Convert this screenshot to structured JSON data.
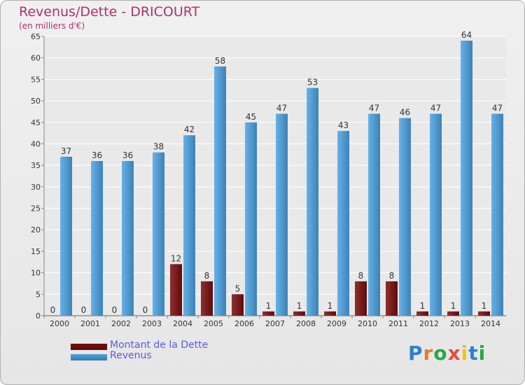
{
  "header": {
    "title": "Revenus/Dette - DRICOURT",
    "subtitle": "(en milliers d'€)"
  },
  "chart_data": {
    "type": "bar",
    "title": "Revenus/Dette - DRICOURT",
    "subtitle": "(en milliers d'€)",
    "xlabel": "",
    "ylabel": "",
    "ylim": [
      0,
      65
    ],
    "yticks": [
      0,
      5,
      10,
      15,
      20,
      25,
      30,
      35,
      40,
      45,
      50,
      55,
      60,
      65
    ],
    "grid": true,
    "categories": [
      "2000",
      "2001",
      "2002",
      "2003",
      "2004",
      "2005",
      "2006",
      "2007",
      "2008",
      "2009",
      "2010",
      "2011",
      "2012",
      "2013",
      "2014"
    ],
    "series": [
      {
        "name": "Montant de la Dette",
        "color": "#7a0c0c",
        "values": [
          0,
          0,
          0,
          0,
          12,
          8,
          5,
          1,
          1,
          1,
          8,
          8,
          1,
          1,
          1
        ]
      },
      {
        "name": "Revenus",
        "color": "#4ba3e3",
        "values": [
          37,
          36,
          36,
          38,
          42,
          58,
          45,
          47,
          53,
          43,
          47,
          46,
          47,
          64,
          47
        ]
      }
    ],
    "legend": "bottom-left"
  },
  "legend": {
    "items": [
      {
        "label": "Montant de la Dette",
        "color": "#7a0c0c"
      },
      {
        "label": "Revenus",
        "color": "#4ba3e3"
      }
    ]
  },
  "logo": {
    "text": "Proxiti",
    "colors": [
      "#2f7fd0",
      "#e67e22",
      "#27a844",
      "#e74c3c",
      "#f1c40f",
      "#2f7fd0",
      "#27a844"
    ]
  }
}
